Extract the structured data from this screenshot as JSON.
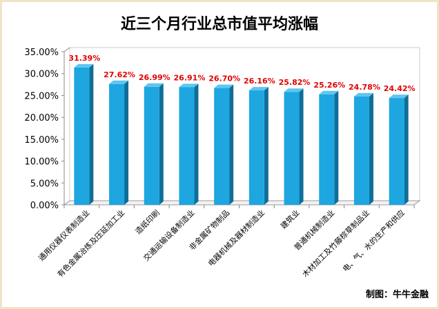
{
  "chart_data": {
    "type": "bar",
    "title": "近三个月行业总市值平均涨幅",
    "categories": [
      "通用仪器仪表制造业",
      "有色金属冶炼及压延加工业",
      "造纸印刷",
      "交通运输设备制造业",
      "非金属矿物制品",
      "电器机械及器材制造业",
      "建筑业",
      "普通机械制造业",
      "木材加工及竹藤棕草制品业",
      "电、气、水的生产和供应"
    ],
    "values": [
      31.39,
      27.62,
      26.99,
      26.91,
      26.7,
      26.16,
      25.82,
      25.26,
      24.78,
      24.42
    ],
    "data_labels": [
      "31.39%",
      "27.62%",
      "26.99%",
      "26.91%",
      "26.70%",
      "26.16%",
      "25.82%",
      "25.26%",
      "24.78%",
      "24.42%"
    ],
    "ylim": [
      0,
      35
    ],
    "yticks": [
      "0.00%",
      "5.00%",
      "10.00%",
      "15.00%",
      "20.00%",
      "25.00%",
      "30.00%",
      "35.00%"
    ],
    "grid": false,
    "bar_color": "#1ea6e0",
    "label_color": "#e00000"
  },
  "credit": "制图：牛牛金融"
}
